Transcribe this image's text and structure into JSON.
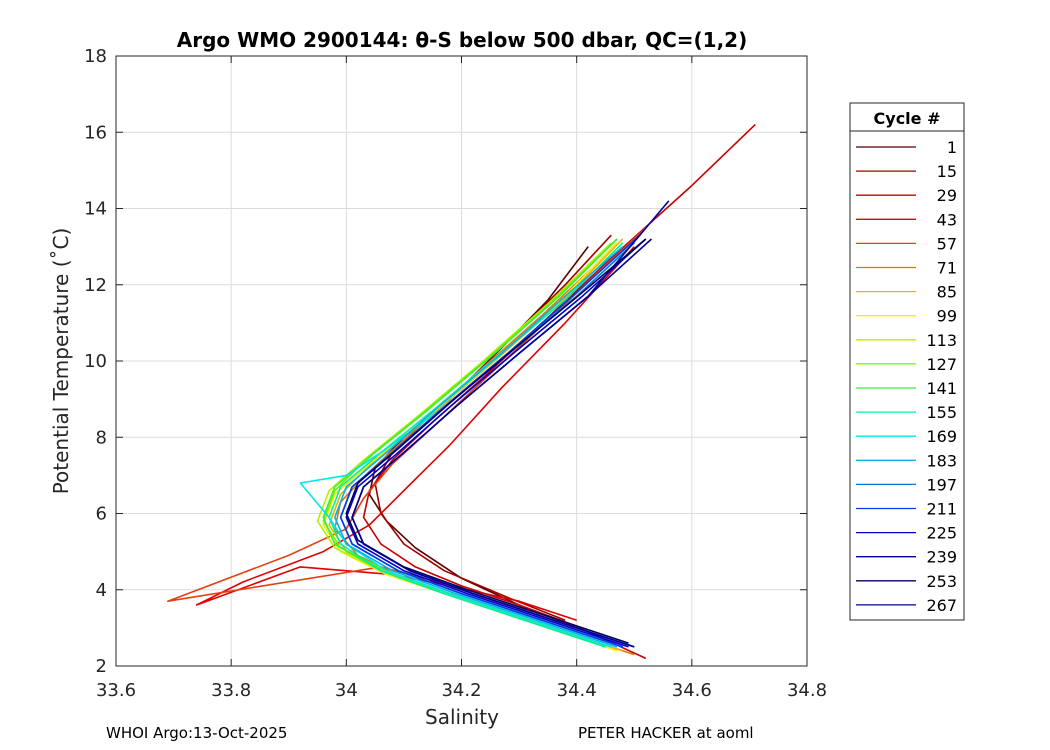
{
  "chart_data": {
    "type": "line",
    "title": "Argo WMO 2900144: θ-S below 500 dbar,  QC=(1,2)",
    "xlabel": "Salinity",
    "ylabel": "Potential Temperature (˚C)",
    "xlim": [
      33.6,
      34.8
    ],
    "ylim": [
      2,
      18
    ],
    "xticks": [
      "33.6",
      "33.8",
      "34",
      "34.2",
      "34.4",
      "34.6",
      "34.8"
    ],
    "yticks": [
      "2",
      "4",
      "6",
      "8",
      "10",
      "12",
      "14",
      "16",
      "18"
    ],
    "grid": true,
    "legend": {
      "title": "Cycle #",
      "placement": "outside-right",
      "entries": [
        {
          "label": "1",
          "color": "#5a0000"
        },
        {
          "label": "15",
          "color": "#a40000"
        },
        {
          "label": "29",
          "color": "#c80000"
        },
        {
          "label": "43",
          "color": "#e00000"
        },
        {
          "label": "57",
          "color": "#e64010"
        },
        {
          "label": "71",
          "color": "#e07800"
        },
        {
          "label": "85",
          "color": "#e8b400"
        },
        {
          "label": "99",
          "color": "#f0f000"
        },
        {
          "label": "113",
          "color": "#b4f000"
        },
        {
          "label": "127",
          "color": "#78f000"
        },
        {
          "label": "141",
          "color": "#3cf03c"
        },
        {
          "label": "155",
          "color": "#00f0a0"
        },
        {
          "label": "169",
          "color": "#00e6e6"
        },
        {
          "label": "183",
          "color": "#00b4f0"
        },
        {
          "label": "197",
          "color": "#0078dc"
        },
        {
          "label": "211",
          "color": "#0040e0"
        },
        {
          "label": "225",
          "color": "#0000d0"
        },
        {
          "label": "239",
          "color": "#0000a0"
        },
        {
          "label": "253",
          "color": "#000060"
        },
        {
          "label": "267",
          "color": "#000090"
        }
      ]
    },
    "series": [
      {
        "name": "1",
        "color": "#5a0000",
        "x": [
          34.39,
          34.3,
          34.2,
          34.12,
          34.07,
          34.04,
          34.05,
          34.1,
          34.18,
          34.26,
          34.35,
          34.42
        ],
        "y": [
          3.1,
          3.6,
          4.3,
          5.1,
          5.8,
          6.5,
          7.2,
          8.0,
          9.0,
          10.2,
          11.6,
          13.0
        ]
      },
      {
        "name": "15",
        "color": "#a40000",
        "x": [
          34.38,
          34.28,
          34.17,
          34.1,
          34.06,
          34.05,
          34.08,
          34.14,
          34.22,
          34.3,
          34.38,
          34.46
        ],
        "y": [
          3.2,
          3.8,
          4.5,
          5.2,
          6.0,
          6.8,
          7.6,
          8.5,
          9.6,
          10.8,
          12.0,
          13.3
        ]
      },
      {
        "name": "29",
        "color": "#c80000",
        "x": [
          34.52,
          34.42,
          34.3,
          34.2,
          34.12,
          34.06,
          34.03,
          34.04,
          34.08,
          34.15,
          34.24,
          34.34,
          34.46,
          34.6,
          34.71
        ],
        "y": [
          2.2,
          2.9,
          3.6,
          4.1,
          4.6,
          5.2,
          5.9,
          6.6,
          7.4,
          8.4,
          9.6,
          11.0,
          12.7,
          14.6,
          16.2
        ]
      },
      {
        "name": "43",
        "color": "#e00000",
        "x": [
          34.4,
          34.3,
          34.18,
          34.08,
          33.92,
          33.74,
          33.82,
          33.96,
          34.04,
          34.1,
          34.18,
          34.27,
          34.38,
          34.5
        ],
        "y": [
          3.2,
          3.7,
          4.1,
          4.4,
          4.6,
          3.6,
          4.2,
          5.0,
          5.7,
          6.6,
          7.8,
          9.3,
          11.0,
          13.0
        ]
      },
      {
        "name": "57",
        "color": "#e64010",
        "x": [
          34.4,
          34.28,
          34.16,
          34.06,
          33.69,
          33.9,
          34.0,
          34.03,
          34.08,
          34.16,
          34.26,
          34.38,
          34.52
        ],
        "y": [
          3.0,
          3.6,
          4.2,
          4.6,
          3.7,
          4.9,
          5.6,
          6.4,
          7.3,
          8.4,
          9.8,
          11.5,
          13.5
        ]
      },
      {
        "name": "71",
        "color": "#e07800",
        "x": [
          34.5,
          34.36,
          34.22,
          34.1,
          34.02,
          33.98,
          33.99,
          34.04,
          34.12,
          34.22,
          34.34,
          34.46
        ],
        "y": [
          2.3,
          3.0,
          3.7,
          4.3,
          4.9,
          5.6,
          6.3,
          7.1,
          8.2,
          9.6,
          11.2,
          12.9
        ]
      },
      {
        "name": "85",
        "color": "#e8b400",
        "x": [
          34.48,
          34.34,
          34.2,
          34.08,
          34.0,
          33.97,
          33.99,
          34.05,
          34.14,
          34.25,
          34.37,
          34.48
        ],
        "y": [
          2.4,
          3.1,
          3.8,
          4.4,
          5.0,
          5.7,
          6.5,
          7.4,
          8.5,
          9.9,
          11.5,
          13.2
        ]
      },
      {
        "name": "99",
        "color": "#f0f000",
        "x": [
          34.47,
          34.33,
          34.19,
          34.07,
          33.99,
          33.96,
          33.98,
          34.04,
          34.13,
          34.24,
          34.36,
          34.47
        ],
        "y": [
          2.4,
          3.1,
          3.8,
          4.4,
          5.0,
          5.7,
          6.5,
          7.3,
          8.4,
          9.8,
          11.4,
          13.1
        ]
      },
      {
        "name": "113",
        "color": "#b4f000",
        "x": [
          34.46,
          34.32,
          34.18,
          34.06,
          33.98,
          33.95,
          33.97,
          34.03,
          34.12,
          34.23,
          34.35,
          34.46
        ],
        "y": [
          2.5,
          3.2,
          3.9,
          4.5,
          5.1,
          5.8,
          6.6,
          7.4,
          8.5,
          9.9,
          11.5,
          13.1
        ]
      },
      {
        "name": "127",
        "color": "#78f000",
        "x": [
          34.46,
          34.32,
          34.18,
          34.07,
          33.99,
          33.96,
          33.98,
          34.04,
          34.13,
          34.24,
          34.36,
          34.47
        ],
        "y": [
          2.5,
          3.2,
          3.9,
          4.5,
          5.1,
          5.8,
          6.6,
          7.5,
          8.6,
          10.0,
          11.6,
          13.2
        ]
      },
      {
        "name": "141",
        "color": "#3cf03c",
        "x": [
          34.45,
          34.31,
          34.17,
          34.06,
          33.98,
          33.96,
          33.98,
          34.05,
          34.14,
          34.25,
          34.37,
          34.47
        ],
        "y": [
          2.5,
          3.2,
          3.9,
          4.5,
          5.2,
          5.9,
          6.7,
          7.6,
          8.7,
          10.1,
          11.7,
          13.2
        ]
      },
      {
        "name": "155",
        "color": "#00f0a0",
        "x": [
          34.45,
          34.31,
          34.17,
          34.06,
          33.99,
          33.97,
          33.99,
          34.06,
          34.15,
          34.26,
          34.38,
          34.48
        ],
        "y": [
          2.5,
          3.2,
          3.9,
          4.5,
          5.2,
          5.9,
          6.7,
          7.6,
          8.7,
          10.1,
          11.6,
          13.1
        ]
      },
      {
        "name": "169",
        "color": "#00e6e6",
        "x": [
          34.46,
          34.32,
          34.18,
          34.07,
          34.0,
          33.97,
          33.92,
          34.0,
          34.07,
          34.17,
          34.28,
          34.4,
          34.5
        ],
        "y": [
          2.5,
          3.2,
          3.9,
          4.5,
          5.2,
          5.9,
          6.8,
          7.0,
          7.7,
          8.8,
          10.2,
          11.7,
          13.1
        ]
      },
      {
        "name": "183",
        "color": "#00b4f0",
        "x": [
          34.47,
          34.33,
          34.19,
          34.08,
          34.0,
          33.98,
          34.0,
          34.07,
          34.16,
          34.27,
          34.38,
          34.48
        ],
        "y": [
          2.5,
          3.2,
          3.9,
          4.5,
          5.2,
          5.9,
          6.7,
          7.6,
          8.8,
          10.2,
          11.7,
          13.0
        ]
      },
      {
        "name": "197",
        "color": "#0078dc",
        "x": [
          34.48,
          34.34,
          34.2,
          34.09,
          34.01,
          33.99,
          34.01,
          34.08,
          34.17,
          34.28,
          34.4,
          34.5
        ],
        "y": [
          2.5,
          3.2,
          3.9,
          4.5,
          5.2,
          5.9,
          6.7,
          7.6,
          8.8,
          10.2,
          11.7,
          13.1
        ]
      },
      {
        "name": "211",
        "color": "#0040e0",
        "x": [
          34.48,
          34.34,
          34.2,
          34.09,
          34.01,
          33.99,
          34.01,
          34.08,
          34.17,
          34.28,
          34.4,
          34.51
        ],
        "y": [
          2.5,
          3.2,
          3.9,
          4.5,
          5.2,
          5.9,
          6.7,
          7.6,
          8.8,
          10.2,
          11.8,
          13.3
        ]
      },
      {
        "name": "225",
        "color": "#0000d0",
        "x": [
          34.49,
          34.35,
          34.21,
          34.1,
          34.02,
          34.0,
          34.02,
          34.09,
          34.18,
          34.29,
          34.41,
          34.52
        ],
        "y": [
          2.5,
          3.2,
          3.9,
          4.5,
          5.2,
          5.9,
          6.7,
          7.6,
          8.8,
          10.2,
          11.7,
          13.2
        ]
      },
      {
        "name": "239",
        "color": "#0000a0",
        "x": [
          34.5,
          34.36,
          34.22,
          34.11,
          34.03,
          34.01,
          34.03,
          34.1,
          34.19,
          34.3,
          34.42,
          34.56
        ],
        "y": [
          2.5,
          3.2,
          3.9,
          4.5,
          5.2,
          5.9,
          6.7,
          7.6,
          8.8,
          10.2,
          11.7,
          14.2
        ]
      },
      {
        "name": "253",
        "color": "#000060",
        "x": [
          34.49,
          34.35,
          34.21,
          34.1,
          34.02,
          34.0,
          34.02,
          34.09,
          34.18,
          34.29,
          34.41,
          34.52
        ],
        "y": [
          2.6,
          3.3,
          4.0,
          4.6,
          5.3,
          6.0,
          6.8,
          7.7,
          8.9,
          10.3,
          11.8,
          13.2
        ]
      },
      {
        "name": "267",
        "color": "#000090",
        "x": [
          34.5,
          34.36,
          34.22,
          34.11,
          34.03,
          34.01,
          34.03,
          34.1,
          34.19,
          34.3,
          34.42,
          34.53
        ],
        "y": [
          2.5,
          3.2,
          3.9,
          4.5,
          5.2,
          5.9,
          6.7,
          7.6,
          8.8,
          10.2,
          11.7,
          13.2
        ]
      }
    ]
  },
  "footer": {
    "left": "WHOI Argo:13-Oct-2025",
    "right": "PETER HACKER at aoml"
  }
}
